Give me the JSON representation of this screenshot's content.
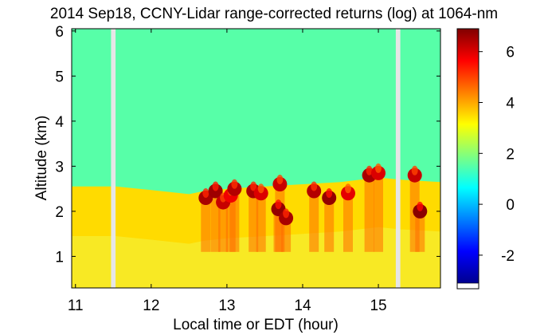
{
  "chart_data": {
    "type": "heatmap",
    "title": "2014 Sep18, CCNY-Lidar range-corrected returns (log) at 1064-nm",
    "xlabel": "Local time or EDT (hour)",
    "ylabel": "Altitude (km)",
    "xlim": [
      10.95,
      15.82
    ],
    "ylim": [
      0.3,
      6.05
    ],
    "x_ticks": [
      11,
      12,
      13,
      14,
      15
    ],
    "y_ticks": [
      1,
      2,
      3,
      4,
      5,
      6
    ],
    "colorbar": {
      "range": [
        -3.1,
        6.9
      ],
      "ticks": [
        -2,
        0,
        2,
        4,
        6
      ],
      "colormap": "jet"
    },
    "data_gaps_hour": [
      [
        11.47,
        11.53
      ],
      [
        15.23,
        15.29
      ]
    ],
    "layers": {
      "free_troposphere_value": 1.5,
      "boundary_layer_value": 3.5,
      "boundary_layer_top_km": [
        [
          10.95,
          2.55
        ],
        [
          11.47,
          2.55
        ],
        [
          11.53,
          2.55
        ],
        [
          12.0,
          2.47
        ],
        [
          12.5,
          2.38
        ],
        [
          12.7,
          2.45
        ],
        [
          13.0,
          2.5
        ],
        [
          13.5,
          2.55
        ],
        [
          14.0,
          2.6
        ],
        [
          14.5,
          2.65
        ],
        [
          15.0,
          2.75
        ],
        [
          15.29,
          2.7
        ],
        [
          15.82,
          2.65
        ]
      ],
      "cloud_patches": [
        {
          "x": 12.72,
          "y": 2.3,
          "value": 6.5
        },
        {
          "x": 12.85,
          "y": 2.45,
          "value": 6.6
        },
        {
          "x": 12.95,
          "y": 2.2,
          "value": 6.2
        },
        {
          "x": 13.05,
          "y": 2.35,
          "value": 5.8
        },
        {
          "x": 13.1,
          "y": 2.5,
          "value": 6.4
        },
        {
          "x": 13.35,
          "y": 2.45,
          "value": 6.5
        },
        {
          "x": 13.45,
          "y": 2.4,
          "value": 6.0
        },
        {
          "x": 13.68,
          "y": 2.05,
          "value": 6.7
        },
        {
          "x": 13.78,
          "y": 1.85,
          "value": 6.5
        },
        {
          "x": 13.7,
          "y": 2.6,
          "value": 6.2
        },
        {
          "x": 14.15,
          "y": 2.45,
          "value": 6.4
        },
        {
          "x": 14.35,
          "y": 2.3,
          "value": 6.7
        },
        {
          "x": 14.6,
          "y": 2.4,
          "value": 5.9
        },
        {
          "x": 14.88,
          "y": 2.8,
          "value": 6.5
        },
        {
          "x": 15.0,
          "y": 2.85,
          "value": 6.0
        },
        {
          "x": 15.55,
          "y": 2.0,
          "value": 6.8
        },
        {
          "x": 15.48,
          "y": 2.8,
          "value": 6.2
        }
      ]
    }
  }
}
